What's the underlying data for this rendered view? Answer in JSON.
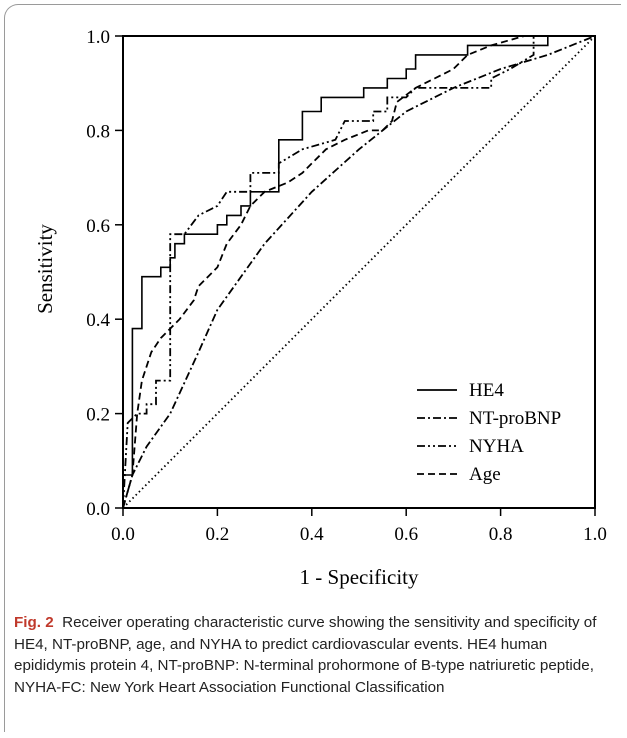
{
  "chart_data": {
    "type": "line",
    "title": "",
    "xlabel": "1 - Specificity",
    "ylabel": "Sensitivity",
    "xlim": [
      0.0,
      1.0
    ],
    "ylim": [
      0.0,
      1.0
    ],
    "x_ticks": [
      "0.0",
      "0.2",
      "0.4",
      "0.6",
      "0.8",
      "1.0"
    ],
    "y_ticks": [
      "0.0",
      "0.2",
      "0.4",
      "0.6",
      "0.8",
      "1.0"
    ],
    "grid": false,
    "legend_position": "bottom-right",
    "series": [
      {
        "name": "HE4",
        "style": "solid",
        "points": [
          [
            0,
            0
          ],
          [
            0,
            0.07
          ],
          [
            0.02,
            0.07
          ],
          [
            0.02,
            0.38
          ],
          [
            0.04,
            0.38
          ],
          [
            0.04,
            0.49
          ],
          [
            0.08,
            0.49
          ],
          [
            0.08,
            0.51
          ],
          [
            0.1,
            0.51
          ],
          [
            0.1,
            0.53
          ],
          [
            0.11,
            0.53
          ],
          [
            0.11,
            0.56
          ],
          [
            0.13,
            0.56
          ],
          [
            0.13,
            0.58
          ],
          [
            0.2,
            0.58
          ],
          [
            0.2,
            0.6
          ],
          [
            0.22,
            0.6
          ],
          [
            0.22,
            0.62
          ],
          [
            0.25,
            0.62
          ],
          [
            0.25,
            0.64
          ],
          [
            0.27,
            0.64
          ],
          [
            0.27,
            0.67
          ],
          [
            0.33,
            0.67
          ],
          [
            0.33,
            0.73
          ],
          [
            0.33,
            0.78
          ],
          [
            0.38,
            0.78
          ],
          [
            0.38,
            0.84
          ],
          [
            0.42,
            0.84
          ],
          [
            0.42,
            0.87
          ],
          [
            0.51,
            0.87
          ],
          [
            0.51,
            0.89
          ],
          [
            0.56,
            0.89
          ],
          [
            0.56,
            0.91
          ],
          [
            0.6,
            0.91
          ],
          [
            0.6,
            0.93
          ],
          [
            0.62,
            0.93
          ],
          [
            0.62,
            0.96
          ],
          [
            0.73,
            0.96
          ],
          [
            0.73,
            0.98
          ],
          [
            0.9,
            0.98
          ],
          [
            0.9,
            1.0
          ],
          [
            1.0,
            1.0
          ]
        ]
      },
      {
        "name": "NT-proBNP",
        "style": "dash-dot",
        "points": [
          [
            0,
            0
          ],
          [
            0.02,
            0.07
          ],
          [
            0.05,
            0.13
          ],
          [
            0.1,
            0.2
          ],
          [
            0.16,
            0.33
          ],
          [
            0.2,
            0.42
          ],
          [
            0.3,
            0.56
          ],
          [
            0.4,
            0.67
          ],
          [
            0.5,
            0.76
          ],
          [
            0.6,
            0.84
          ],
          [
            0.7,
            0.89
          ],
          [
            0.8,
            0.93
          ],
          [
            0.9,
            0.96
          ],
          [
            1.0,
            1.0
          ]
        ]
      },
      {
        "name": "NYHA",
        "style": "dash-dot-dot",
        "points": [
          [
            0,
            0
          ],
          [
            0.01,
            0.18
          ],
          [
            0.03,
            0.2
          ],
          [
            0.05,
            0.2
          ],
          [
            0.05,
            0.22
          ],
          [
            0.07,
            0.22
          ],
          [
            0.07,
            0.27
          ],
          [
            0.1,
            0.27
          ],
          [
            0.1,
            0.58
          ],
          [
            0.13,
            0.58
          ],
          [
            0.16,
            0.62
          ],
          [
            0.2,
            0.64
          ],
          [
            0.22,
            0.67
          ],
          [
            0.27,
            0.67
          ],
          [
            0.27,
            0.71
          ],
          [
            0.33,
            0.71
          ],
          [
            0.33,
            0.73
          ],
          [
            0.38,
            0.76
          ],
          [
            0.45,
            0.78
          ],
          [
            0.47,
            0.82
          ],
          [
            0.53,
            0.82
          ],
          [
            0.53,
            0.84
          ],
          [
            0.56,
            0.84
          ],
          [
            0.56,
            0.87
          ],
          [
            0.6,
            0.87
          ],
          [
            0.62,
            0.89
          ],
          [
            0.7,
            0.89
          ],
          [
            0.78,
            0.89
          ],
          [
            0.78,
            0.91
          ],
          [
            0.82,
            0.93
          ],
          [
            0.87,
            0.96
          ],
          [
            0.87,
            1.0
          ],
          [
            1.0,
            1.0
          ]
        ]
      },
      {
        "name": "Age",
        "style": "dashed",
        "points": [
          [
            0,
            0
          ],
          [
            0.02,
            0.07
          ],
          [
            0.03,
            0.2
          ],
          [
            0.04,
            0.27
          ],
          [
            0.06,
            0.33
          ],
          [
            0.08,
            0.36
          ],
          [
            0.1,
            0.38
          ],
          [
            0.12,
            0.4
          ],
          [
            0.15,
            0.44
          ],
          [
            0.16,
            0.47
          ],
          [
            0.18,
            0.49
          ],
          [
            0.2,
            0.51
          ],
          [
            0.22,
            0.56
          ],
          [
            0.25,
            0.6
          ],
          [
            0.27,
            0.64
          ],
          [
            0.3,
            0.67
          ],
          [
            0.35,
            0.69
          ],
          [
            0.38,
            0.71
          ],
          [
            0.4,
            0.73
          ],
          [
            0.43,
            0.76
          ],
          [
            0.47,
            0.78
          ],
          [
            0.52,
            0.8
          ],
          [
            0.55,
            0.8
          ],
          [
            0.57,
            0.82
          ],
          [
            0.58,
            0.86
          ],
          [
            0.62,
            0.89
          ],
          [
            0.66,
            0.91
          ],
          [
            0.7,
            0.93
          ],
          [
            0.73,
            0.96
          ],
          [
            0.78,
            0.98
          ],
          [
            0.85,
            1.0
          ],
          [
            1.0,
            1.0
          ]
        ]
      },
      {
        "name": "",
        "style": "dotted",
        "points": [
          [
            0,
            0
          ],
          [
            1.0,
            1.0
          ]
        ]
      }
    ]
  },
  "caption": {
    "label": "Fig. 2",
    "text": "Receiver operating characteristic curve showing the sensitivity and specificity of HE4, NT-proBNP, age, and NYHA to predict cardiovascular events. HE4 human epididymis protein 4, NT-proBNP: N-terminal prohormone of B-type natriuretic peptide, NYHA-FC: New York Heart Association Functional Classification"
  }
}
